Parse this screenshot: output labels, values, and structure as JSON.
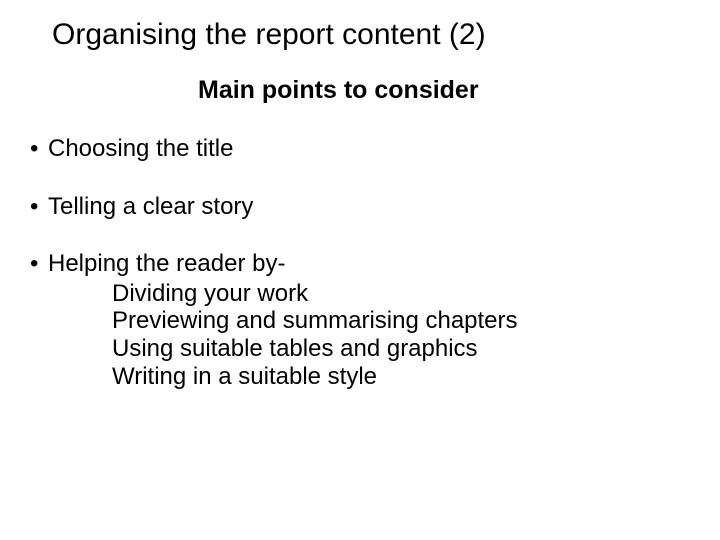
{
  "slide": {
    "title": "Organising the report content (2)",
    "subtitle": "Main points to consider",
    "title_fontsize": 30,
    "subtitle_fontsize": 25,
    "body_fontsize": 24,
    "background_color": "#ffffff",
    "text_color": "#000000",
    "bullets": [
      {
        "text": "Choosing the title",
        "sub": []
      },
      {
        "text": "Telling a clear story",
        "sub": []
      },
      {
        "text": "Helping the reader by-",
        "sub": [
          "Dividing your work",
          "Previewing and summarising chapters",
          "Using suitable tables and graphics",
          "Writing in a suitable style"
        ]
      }
    ],
    "bullet_char": "•"
  }
}
